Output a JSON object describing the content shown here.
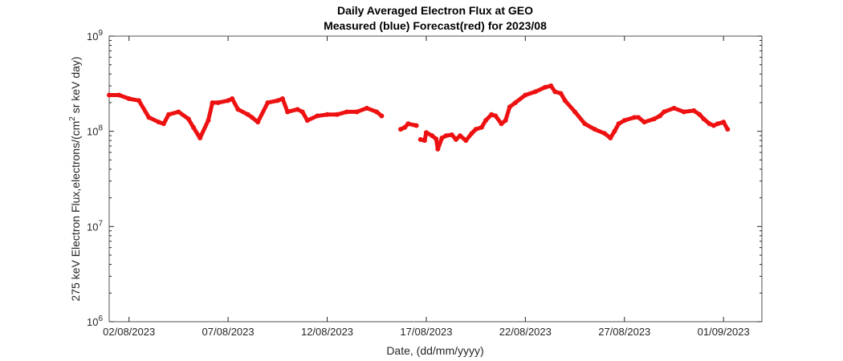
{
  "chart_data": {
    "type": "line",
    "title": "Daily Averaged Electron Flux at GEO",
    "subtitle": "Measured (blue) Forecast(red) for 2023/08",
    "xlabel": "Date, (dd/mm/yyyy)",
    "ylabel": {
      "text": "275 keV Electron Flux,electrons/(cm",
      "sup": "2",
      "rest": " sr keV day)"
    },
    "log_y": true,
    "xlim": [
      "2023-08-01T00:00",
      "2023-09-02T22:30"
    ],
    "ylim": [
      1000000,
      1000000000
    ],
    "xticks": [
      {
        "value": "2023-08-02T00:00",
        "label": "02/08/2023"
      },
      {
        "value": "2023-08-07T00:00",
        "label": "07/08/2023"
      },
      {
        "value": "2023-08-12T00:00",
        "label": "12/08/2023"
      },
      {
        "value": "2023-08-17T00:00",
        "label": "17/08/2023"
      },
      {
        "value": "2023-08-22T00:00",
        "label": "22/08/2023"
      },
      {
        "value": "2023-08-27T00:00",
        "label": "27/08/2023"
      },
      {
        "value": "2023-09-01T00:00",
        "label": "01/09/2023"
      }
    ],
    "yticks": [
      {
        "value": 1000000,
        "label": "10",
        "exponent": "6"
      },
      {
        "value": 10000000,
        "label": "10",
        "exponent": "7"
      },
      {
        "value": 100000000,
        "label": "10",
        "exponent": "8"
      },
      {
        "value": 1000000000,
        "label": "10",
        "exponent": "9"
      }
    ],
    "series": [
      {
        "name": "Forecast",
        "color": "#ee1111",
        "x": [
          "2023-08-01T00:00",
          "2023-08-01T12:00",
          "2023-08-02T00:00",
          "2023-08-02T12:00",
          "2023-08-03T00:00",
          "2023-08-03T12:00",
          "2023-08-03T18:00",
          "2023-08-04T00:00",
          "2023-08-04T12:00",
          "2023-08-05T00:00",
          "2023-08-05T06:00",
          "2023-08-05T14:00",
          "2023-08-06T00:00",
          "2023-08-06T05:00",
          "2023-08-06T12:00",
          "2023-08-07T00:00",
          "2023-08-07T05:00",
          "2023-08-07T12:00",
          "2023-08-08T00:00",
          "2023-08-08T05:00",
          "2023-08-08T12:00",
          "2023-08-09T00:00",
          "2023-08-09T12:00",
          "2023-08-09T18:00",
          "2023-08-10T00:00",
          "2023-08-10T12:00",
          "2023-08-10T18:00",
          "2023-08-11T00:00",
          "2023-08-11T12:00",
          "2023-08-12T00:00",
          "2023-08-12T12:00",
          "2023-08-13T00:00",
          "2023-08-13T12:00",
          "2023-08-14T00:00",
          "2023-08-14T12:00",
          "2023-08-14T18:00",
          "2023-08-15T05:00",
          "2023-08-15T17:00",
          "2023-08-15T22:00",
          "2023-08-16T02:00",
          "2023-08-16T12:00",
          "2023-08-16T14:00",
          "2023-08-16T17:00",
          "2023-08-16T22:00",
          "2023-08-17T00:00",
          "2023-08-17T07:00",
          "2023-08-17T12:00",
          "2023-08-17T14:00",
          "2023-08-17T19:00",
          "2023-08-18T00:00",
          "2023-08-18T07:00",
          "2023-08-18T12:00",
          "2023-08-18T17:00",
          "2023-08-19T00:00",
          "2023-08-19T07:00",
          "2023-08-19T12:00",
          "2023-08-19T19:00",
          "2023-08-20T00:00",
          "2023-08-20T07:00",
          "2023-08-20T12:00",
          "2023-08-20T19:00",
          "2023-08-21T00:00",
          "2023-08-21T05:00",
          "2023-08-21T12:00",
          "2023-08-22T00:00",
          "2023-08-22T12:00",
          "2023-08-23T00:00",
          "2023-08-23T07:00",
          "2023-08-23T12:00",
          "2023-08-23T19:00",
          "2023-08-24T00:00",
          "2023-08-24T12:00",
          "2023-08-25T00:00",
          "2023-08-25T12:00",
          "2023-08-26T00:00",
          "2023-08-26T07:00",
          "2023-08-26T12:00",
          "2023-08-26T17:00",
          "2023-08-27T00:00",
          "2023-08-27T12:00",
          "2023-08-27T17:00",
          "2023-08-28T00:00",
          "2023-08-28T12:00",
          "2023-08-28T19:00",
          "2023-08-29T00:00",
          "2023-08-29T12:00",
          "2023-08-30T00:00",
          "2023-08-30T12:00",
          "2023-08-30T19:00",
          "2023-08-31T00:00",
          "2023-08-31T07:00",
          "2023-08-31T12:00",
          "2023-08-31T17:00",
          "2023-09-01T00:00",
          "2023-09-01T05:00"
        ],
        "values": [
          240000000.0,
          240000000.0,
          220000000.0,
          210000000.0,
          140000000.0,
          125000000.0,
          120000000.0,
          150000000.0,
          160000000.0,
          135000000.0,
          110000000.0,
          85000000.0,
          130000000.0,
          200000000.0,
          200000000.0,
          210000000.0,
          220000000.0,
          170000000.0,
          150000000.0,
          140000000.0,
          125000000.0,
          200000000.0,
          210000000.0,
          220000000.0,
          160000000.0,
          170000000.0,
          160000000.0,
          130000000.0,
          145000000.0,
          150000000.0,
          150000000.0,
          160000000.0,
          160000000.0,
          175000000.0,
          160000000.0,
          145000000.0,
          null,
          105000000.0,
          110000000.0,
          120000000.0,
          115000000.0,
          null,
          82000000.0,
          80000000.0,
          97000000.0,
          90000000.0,
          83000000.0,
          65000000.0,
          85000000.0,
          90000000.0,
          92000000.0,
          82000000.0,
          90000000.0,
          80000000.0,
          95000000.0,
          105000000.0,
          110000000.0,
          130000000.0,
          150000000.0,
          145000000.0,
          120000000.0,
          130000000.0,
          180000000.0,
          200000000.0,
          240000000.0,
          260000000.0,
          290000000.0,
          300000000.0,
          260000000.0,
          250000000.0,
          210000000.0,
          160000000.0,
          120000000.0,
          105000000.0,
          95000000.0,
          85000000.0,
          100000000.0,
          120000000.0,
          130000000.0,
          140000000.0,
          140000000.0,
          125000000.0,
          135000000.0,
          145000000.0,
          160000000.0,
          175000000.0,
          160000000.0,
          165000000.0,
          150000000.0,
          135000000.0,
          120000000.0,
          115000000.0,
          120000000.0,
          125000000.0,
          105000000.0
        ]
      }
    ]
  }
}
